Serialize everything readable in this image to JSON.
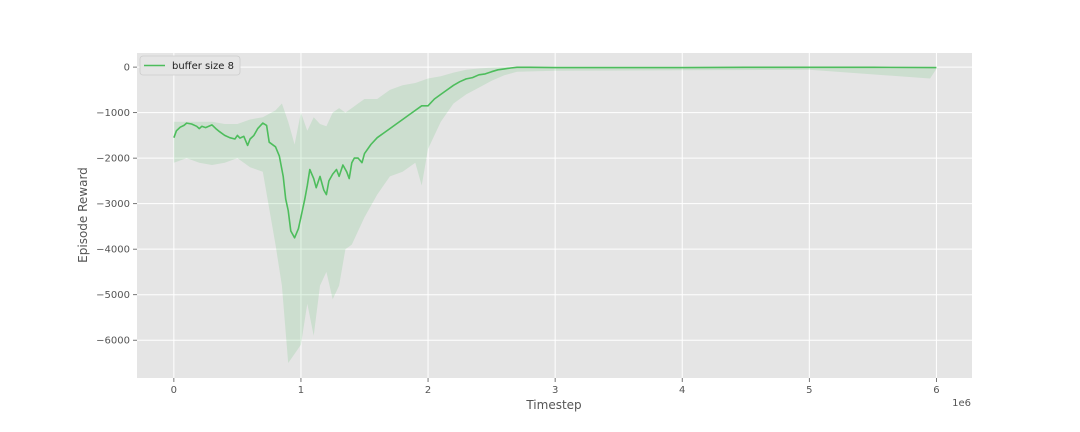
{
  "chart_data": {
    "type": "line",
    "title": "",
    "xlabel": "Timestep",
    "ylabel": "Episode Reward",
    "x_offset_label": "1e6",
    "xlim": [
      -0.29,
      6.28
    ],
    "ylim": [
      -6830,
      310
    ],
    "x_ticks": [
      0,
      1,
      2,
      3,
      4,
      5,
      6
    ],
    "y_ticks": [
      0,
      -1000,
      -2000,
      -3000,
      -4000,
      -5000,
      -6000
    ],
    "grid": true,
    "legend_position": "top-left",
    "series": [
      {
        "name": "buffer size 8",
        "color": "#4dbd5c",
        "smoothed": [
          [
            0.0,
            -1550
          ],
          [
            0.02,
            -1400
          ],
          [
            0.05,
            -1320
          ],
          [
            0.08,
            -1280
          ],
          [
            0.1,
            -1230
          ],
          [
            0.14,
            -1250
          ],
          [
            0.18,
            -1300
          ],
          [
            0.2,
            -1350
          ],
          [
            0.22,
            -1300
          ],
          [
            0.25,
            -1330
          ],
          [
            0.3,
            -1270
          ],
          [
            0.33,
            -1350
          ],
          [
            0.36,
            -1420
          ],
          [
            0.4,
            -1500
          ],
          [
            0.44,
            -1550
          ],
          [
            0.48,
            -1580
          ],
          [
            0.5,
            -1500
          ],
          [
            0.52,
            -1560
          ],
          [
            0.55,
            -1520
          ],
          [
            0.58,
            -1720
          ],
          [
            0.6,
            -1580
          ],
          [
            0.63,
            -1500
          ],
          [
            0.66,
            -1350
          ],
          [
            0.7,
            -1230
          ],
          [
            0.73,
            -1280
          ],
          [
            0.75,
            -1650
          ],
          [
            0.8,
            -1750
          ],
          [
            0.83,
            -1950
          ],
          [
            0.86,
            -2400
          ],
          [
            0.88,
            -2900
          ],
          [
            0.9,
            -3150
          ],
          [
            0.92,
            -3600
          ],
          [
            0.95,
            -3750
          ],
          [
            0.98,
            -3550
          ],
          [
            1.0,
            -3300
          ],
          [
            1.03,
            -2900
          ],
          [
            1.05,
            -2600
          ],
          [
            1.07,
            -2250
          ],
          [
            1.1,
            -2450
          ],
          [
            1.12,
            -2650
          ],
          [
            1.15,
            -2400
          ],
          [
            1.18,
            -2700
          ],
          [
            1.2,
            -2800
          ],
          [
            1.22,
            -2500
          ],
          [
            1.25,
            -2350
          ],
          [
            1.28,
            -2250
          ],
          [
            1.3,
            -2400
          ],
          [
            1.33,
            -2150
          ],
          [
            1.36,
            -2300
          ],
          [
            1.38,
            -2450
          ],
          [
            1.4,
            -2100
          ],
          [
            1.42,
            -2000
          ],
          [
            1.45,
            -2000
          ],
          [
            1.48,
            -2100
          ],
          [
            1.5,
            -1900
          ],
          [
            1.55,
            -1700
          ],
          [
            1.6,
            -1550
          ],
          [
            1.65,
            -1450
          ],
          [
            1.7,
            -1350
          ],
          [
            1.75,
            -1250
          ],
          [
            1.8,
            -1150
          ],
          [
            1.85,
            -1050
          ],
          [
            1.9,
            -950
          ],
          [
            1.95,
            -850
          ],
          [
            2.0,
            -850
          ],
          [
            2.05,
            -700
          ],
          [
            2.1,
            -600
          ],
          [
            2.15,
            -500
          ],
          [
            2.2,
            -400
          ],
          [
            2.25,
            -320
          ],
          [
            2.3,
            -260
          ],
          [
            2.35,
            -230
          ],
          [
            2.4,
            -170
          ],
          [
            2.45,
            -150
          ],
          [
            2.5,
            -100
          ],
          [
            2.55,
            -60
          ],
          [
            2.6,
            -40
          ],
          [
            2.65,
            -20
          ],
          [
            2.7,
            -5
          ],
          [
            2.8,
            -5
          ],
          [
            3.0,
            -10
          ],
          [
            3.5,
            -10
          ],
          [
            4.0,
            -10
          ],
          [
            4.5,
            -5
          ],
          [
            5.0,
            -5
          ],
          [
            5.5,
            -5
          ],
          [
            6.0,
            -10
          ]
        ],
        "raw_band": [
          [
            0.0,
            -1200,
            -2100
          ],
          [
            0.1,
            -1200,
            -2000
          ],
          [
            0.2,
            -1200,
            -2100
          ],
          [
            0.3,
            -1200,
            -2150
          ],
          [
            0.4,
            -1250,
            -2100
          ],
          [
            0.5,
            -1250,
            -2000
          ],
          [
            0.6,
            -1150,
            -2200
          ],
          [
            0.7,
            -1100,
            -2300
          ],
          [
            0.8,
            -950,
            -3900
          ],
          [
            0.85,
            -800,
            -4800
          ],
          [
            0.9,
            -1200,
            -6500
          ],
          [
            0.95,
            -1700,
            -6300
          ],
          [
            1.0,
            -1000,
            -6100
          ],
          [
            1.05,
            -1400,
            -5200
          ],
          [
            1.1,
            -1100,
            -5900
          ],
          [
            1.15,
            -1250,
            -4800
          ],
          [
            1.2,
            -1300,
            -4500
          ],
          [
            1.25,
            -1000,
            -5100
          ],
          [
            1.3,
            -900,
            -4800
          ],
          [
            1.35,
            -1000,
            -4000
          ],
          [
            1.4,
            -900,
            -3900
          ],
          [
            1.45,
            -800,
            -3600
          ],
          [
            1.5,
            -700,
            -3300
          ],
          [
            1.6,
            -700,
            -2800
          ],
          [
            1.7,
            -500,
            -2400
          ],
          [
            1.8,
            -400,
            -2300
          ],
          [
            1.9,
            -350,
            -2100
          ],
          [
            1.95,
            -300,
            -2600
          ],
          [
            2.0,
            -250,
            -1800
          ],
          [
            2.1,
            -200,
            -1200
          ],
          [
            2.2,
            -120,
            -800
          ],
          [
            2.3,
            -60,
            -600
          ],
          [
            2.4,
            -30,
            -450
          ],
          [
            2.5,
            -10,
            -300
          ],
          [
            2.6,
            0,
            -180
          ],
          [
            2.7,
            0,
            -100
          ],
          [
            3.0,
            0,
            -80
          ],
          [
            4.0,
            0,
            -70
          ],
          [
            5.0,
            0,
            -60
          ],
          [
            5.95,
            0,
            -250
          ],
          [
            6.0,
            0,
            -40
          ]
        ]
      }
    ]
  }
}
